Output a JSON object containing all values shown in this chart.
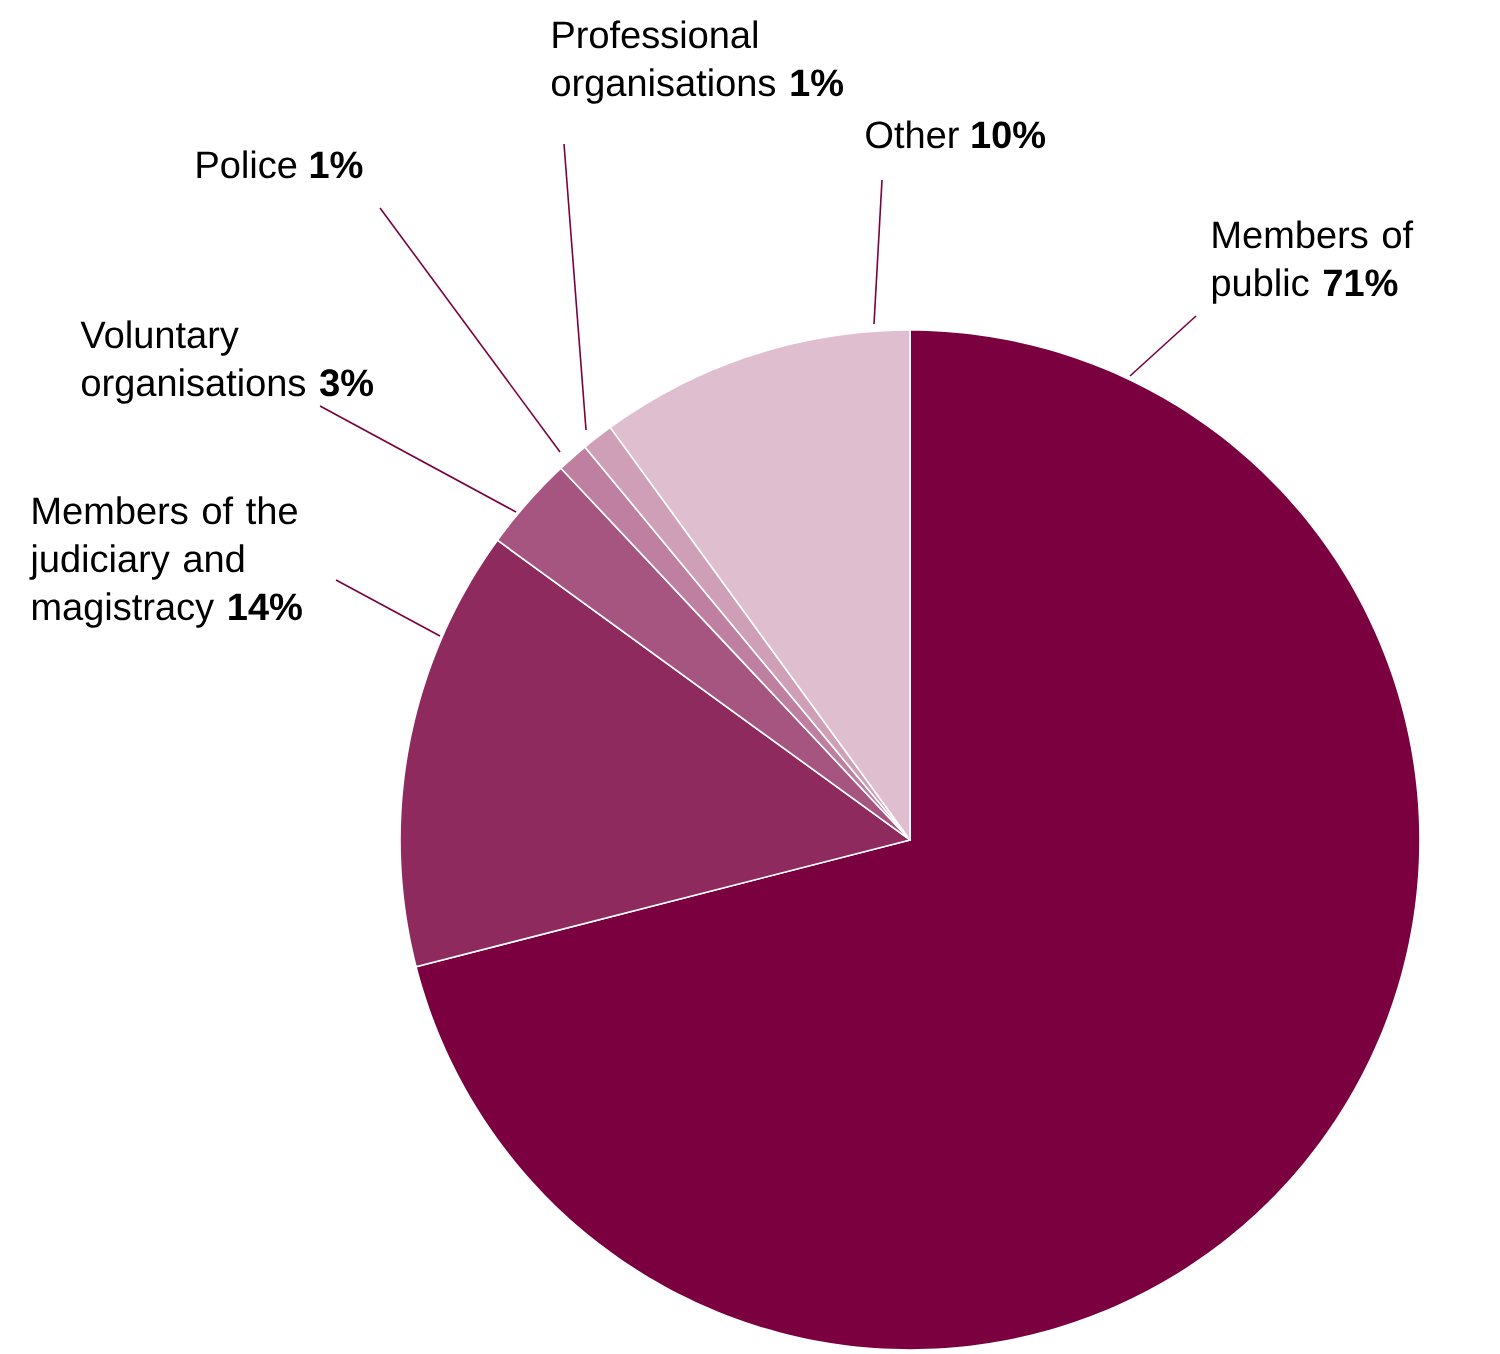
{
  "chart_data": {
    "type": "pie",
    "categories": [
      "Members of public",
      "Members of the judiciary and magistracy",
      "Voluntary organisations",
      "Police",
      "Professional organisations",
      "Other"
    ],
    "values": [
      71,
      14,
      3,
      1,
      1,
      10
    ],
    "value_labels": [
      "71%",
      "14%",
      "3%",
      "1%",
      "1%",
      "10%"
    ],
    "colors": [
      "#7b003f",
      "#8f2a5e",
      "#a65580",
      "#bf7fa0",
      "#cf9fb8",
      "#dfbfcf"
    ]
  }
}
